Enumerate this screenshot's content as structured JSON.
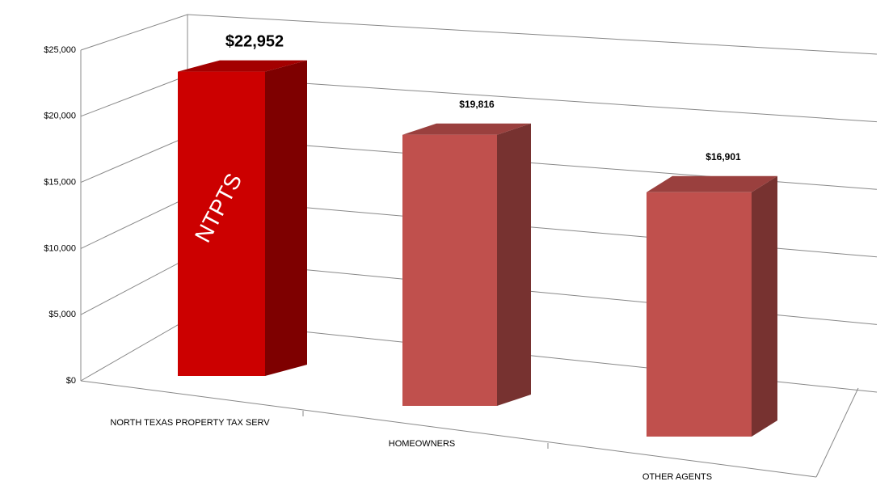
{
  "chart_data": {
    "type": "bar3d",
    "categories": [
      "NORTH TEXAS PROPERTY TAX SERV",
      "HOMEOWNERS",
      "OTHER AGENTS"
    ],
    "values": [
      22952,
      19816,
      16901
    ],
    "value_labels": [
      "$22,952",
      "$19,816",
      "$16,901"
    ],
    "colors": [
      "#cc0000",
      "#c0504d",
      "#c0504d"
    ],
    "annotation": "NTPTS",
    "ylim": [
      0,
      25000
    ],
    "yticks": [
      {
        "value": 0,
        "label": "$0"
      },
      {
        "value": 5000,
        "label": "$5,000"
      },
      {
        "value": 10000,
        "label": "$10,000"
      },
      {
        "value": 15000,
        "label": "$15,000"
      },
      {
        "value": 20000,
        "label": "$20,000"
      },
      {
        "value": 25000,
        "label": "$25,000"
      }
    ],
    "grid": true
  }
}
